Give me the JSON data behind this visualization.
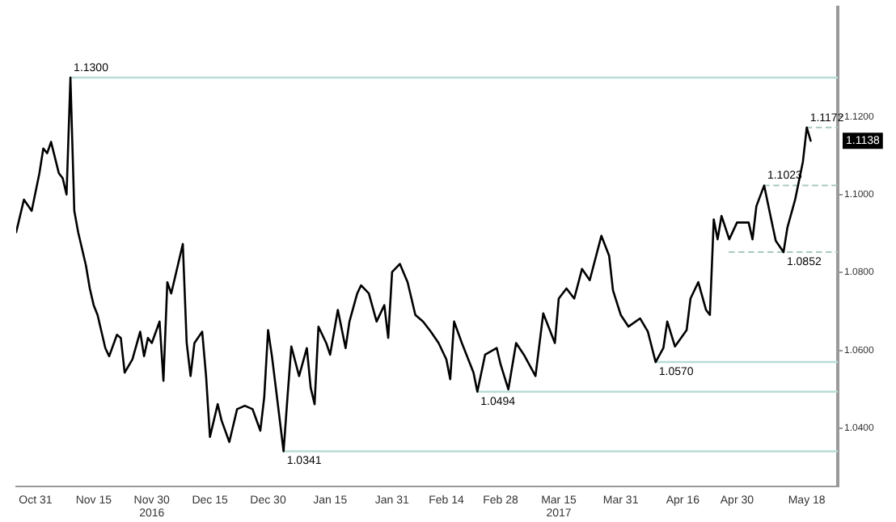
{
  "chart_data": {
    "type": "line",
    "xlim": [
      "2016-10-26",
      "2017-05-26"
    ],
    "ylim": [
      1.025,
      1.148
    ],
    "xticks": [
      {
        "value": "2016-10-31",
        "label": "Oct 31"
      },
      {
        "value": "2016-11-15",
        "label": "Nov 15"
      },
      {
        "value": "2016-11-30",
        "label": "Nov 30\n2016"
      },
      {
        "value": "2016-12-15",
        "label": "Dec 15"
      },
      {
        "value": "2016-12-30",
        "label": "Dec 30"
      },
      {
        "value": "2017-01-15",
        "label": "Jan 15"
      },
      {
        "value": "2017-01-31",
        "label": "Jan 31"
      },
      {
        "value": "2017-02-14",
        "label": "Feb 14"
      },
      {
        "value": "2017-02-28",
        "label": "Feb 28"
      },
      {
        "value": "2017-03-15",
        "label": "Mar 15\n2017"
      },
      {
        "value": "2017-03-31",
        "label": "Mar 31"
      },
      {
        "value": "2017-04-16",
        "label": "Apr 16"
      },
      {
        "value": "2017-04-30",
        "label": "Apr 30"
      },
      {
        "value": "2017-05-18",
        "label": "May 18"
      }
    ],
    "yticks": [
      {
        "value": 1.04,
        "label": "1.0400"
      },
      {
        "value": 1.06,
        "label": "1.0600"
      },
      {
        "value": 1.08,
        "label": "1.0800"
      },
      {
        "value": 1.1,
        "label": "1.1000"
      },
      {
        "value": 1.12,
        "label": "1.1200"
      }
    ],
    "grid": false,
    "legend": false,
    "marker": "none",
    "series": [
      {
        "color": "#000000",
        "line_style": "solid",
        "x": [
          "2016-10-26",
          "2016-10-28",
          "2016-10-30",
          "2016-11-01",
          "2016-11-02",
          "2016-11-03",
          "2016-11-04",
          "2016-11-06",
          "2016-11-07",
          "2016-11-08",
          "2016-11-09",
          "2016-11-10",
          "2016-11-11",
          "2016-11-13",
          "2016-11-14",
          "2016-11-15",
          "2016-11-16",
          "2016-11-18",
          "2016-11-19",
          "2016-11-21",
          "2016-11-22",
          "2016-11-23",
          "2016-11-25",
          "2016-11-27",
          "2016-11-28",
          "2016-11-29",
          "2016-11-30",
          "2016-12-02",
          "2016-12-03",
          "2016-12-04",
          "2016-12-05",
          "2016-12-06",
          "2016-12-08",
          "2016-12-09",
          "2016-12-10",
          "2016-12-11",
          "2016-12-13",
          "2016-12-14",
          "2016-12-15",
          "2016-12-17",
          "2016-12-18",
          "2016-12-20",
          "2016-12-22",
          "2016-12-24",
          "2016-12-26",
          "2016-12-28",
          "2016-12-29",
          "2016-12-30",
          "2016-12-31",
          "2017-01-01",
          "2017-01-03",
          "2017-01-04",
          "2017-01-05",
          "2017-01-07",
          "2017-01-09",
          "2017-01-10",
          "2017-01-11",
          "2017-01-12",
          "2017-01-14",
          "2017-01-15",
          "2017-01-17",
          "2017-01-19",
          "2017-01-20",
          "2017-01-22",
          "2017-01-23",
          "2017-01-25",
          "2017-01-27",
          "2017-01-29",
          "2017-01-30",
          "2017-01-31",
          "2017-02-02",
          "2017-02-04",
          "2017-02-06",
          "2017-02-08",
          "2017-02-10",
          "2017-02-12",
          "2017-02-14",
          "2017-02-15",
          "2017-02-16",
          "2017-02-18",
          "2017-02-21",
          "2017-02-22",
          "2017-02-24",
          "2017-02-27",
          "2017-02-28",
          "2017-03-02",
          "2017-03-04",
          "2017-03-06",
          "2017-03-09",
          "2017-03-11",
          "2017-03-14",
          "2017-03-15",
          "2017-03-17",
          "2017-03-19",
          "2017-03-21",
          "2017-03-23",
          "2017-03-26",
          "2017-03-28",
          "2017-03-29",
          "2017-03-31",
          "2017-04-02",
          "2017-04-05",
          "2017-04-07",
          "2017-04-09",
          "2017-04-11",
          "2017-04-12",
          "2017-04-14",
          "2017-04-17",
          "2017-04-18",
          "2017-04-20",
          "2017-04-22",
          "2017-04-23",
          "2017-04-24",
          "2017-04-25",
          "2017-04-26",
          "2017-04-28",
          "2017-04-30",
          "2017-05-03",
          "2017-05-04",
          "2017-05-05",
          "2017-05-07",
          "2017-05-09",
          "2017-05-10",
          "2017-05-12",
          "2017-05-13",
          "2017-05-15",
          "2017-05-17",
          "2017-05-18",
          "2017-05-19"
        ],
        "values": [
          1.0903,
          1.0987,
          1.0958,
          1.1055,
          1.1118,
          1.1106,
          1.1135,
          1.1055,
          1.1042,
          1.1,
          1.13,
          1.0958,
          1.0903,
          1.0818,
          1.0759,
          1.0716,
          1.0691,
          1.0606,
          1.0585,
          1.064,
          1.0632,
          1.0543,
          1.0577,
          1.0648,
          1.0585,
          1.0632,
          1.0619,
          1.0674,
          1.0522,
          1.0775,
          1.0746,
          1.0788,
          1.0873,
          1.0619,
          1.0534,
          1.0619,
          1.0648,
          1.0534,
          1.0378,
          1.0462,
          1.042,
          1.0365,
          1.0449,
          1.0458,
          1.0449,
          1.0394,
          1.0479,
          1.0652,
          1.0585,
          1.0504,
          1.0341,
          1.0479,
          1.061,
          1.0534,
          1.0606,
          1.0504,
          1.0462,
          1.0661,
          1.0619,
          1.0589,
          1.0704,
          1.0606,
          1.0674,
          1.0746,
          1.0767,
          1.0746,
          1.0674,
          1.0716,
          1.0632,
          1.0801,
          1.0822,
          1.0775,
          1.0691,
          1.0674,
          1.0648,
          1.0619,
          1.0577,
          1.0526,
          1.0674,
          1.0619,
          1.0543,
          1.0494,
          1.0589,
          1.0606,
          1.0564,
          1.05,
          1.0619,
          1.0589,
          1.0534,
          1.0695,
          1.0619,
          1.0733,
          1.0759,
          1.0733,
          1.0809,
          1.078,
          1.0894,
          1.0843,
          1.0754,
          1.0691,
          1.0661,
          1.0682,
          1.0648,
          1.057,
          1.0606,
          1.0674,
          1.061,
          1.0652,
          1.0733,
          1.0775,
          1.0704,
          1.0691,
          1.0936,
          1.0885,
          1.0945,
          1.0885,
          1.0928,
          1.0928,
          1.0885,
          1.097,
          1.1023,
          1.0928,
          1.0881,
          1.0852,
          1.0915,
          1.0987,
          1.1084,
          1.1172,
          1.1138
        ]
      },
      {
        "color": "#b9ddd6",
        "line_style": "solid",
        "x": [
          "2016-11-09",
          "2017-05-26"
        ],
        "values": [
          1.13,
          1.13
        ]
      },
      {
        "color": "#b9ddd6",
        "line_style": "solid",
        "x": [
          "2017-01-03",
          "2017-05-26"
        ],
        "values": [
          1.0341,
          1.0341
        ]
      },
      {
        "color": "#b9ddd6",
        "line_style": "solid",
        "x": [
          "2017-02-22",
          "2017-05-26"
        ],
        "values": [
          1.0494,
          1.0494
        ]
      },
      {
        "color": "#b9ddd6",
        "line_style": "solid",
        "x": [
          "2017-04-09",
          "2017-05-26"
        ],
        "values": [
          1.057,
          1.057
        ]
      },
      {
        "color": "#a9c9c2",
        "line_style": "dashed",
        "x": [
          "2017-04-28",
          "2017-05-26"
        ],
        "values": [
          1.0852,
          1.0852
        ]
      },
      {
        "color": "#a9c9c2",
        "line_style": "dashed",
        "x": [
          "2017-05-07",
          "2017-05-26"
        ],
        "values": [
          1.1023,
          1.1023
        ]
      },
      {
        "color": "#a9c9c2",
        "line_style": "dashed",
        "x": [
          "2017-05-18",
          "2017-05-26"
        ],
        "values": [
          1.1172,
          1.1172
        ]
      }
    ],
    "annotations": [
      {
        "text": "1.1300",
        "x": "2016-11-09",
        "y": 1.13
      },
      {
        "text": "1.0341",
        "x": "2017-01-03",
        "y": 1.0341
      },
      {
        "text": "1.0494",
        "x": "2017-02-22",
        "y": 1.0494
      },
      {
        "text": "1.0570",
        "x": "2017-04-09",
        "y": 1.057
      },
      {
        "text": "1.0852",
        "x": "2017-05-12",
        "y": 1.0852
      },
      {
        "text": "1.1023",
        "x": "2017-05-07",
        "y": 1.1023
      },
      {
        "text": "1.1172",
        "x": "2017-05-18",
        "y": 1.1172
      },
      "1.1138"
    ]
  }
}
